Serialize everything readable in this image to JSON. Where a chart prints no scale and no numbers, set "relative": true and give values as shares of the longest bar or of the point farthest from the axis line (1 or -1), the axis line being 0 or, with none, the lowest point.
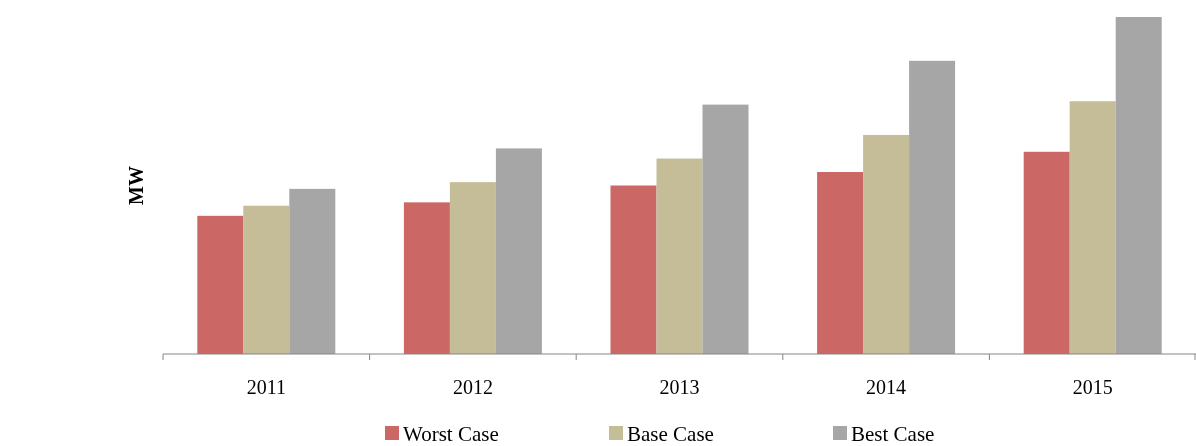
{
  "chart_data": {
    "type": "bar",
    "ylabel": "MW",
    "relative": true,
    "categories": [
      "2011",
      "2012",
      "2013",
      "2014",
      "2015"
    ],
    "series": [
      {
        "name": "Worst Case",
        "color": "#cb6764",
        "values": [
          0.41,
          0.45,
          0.5,
          0.54,
          0.6
        ]
      },
      {
        "name": "Base Case",
        "color": "#c4bd97",
        "values": [
          0.44,
          0.51,
          0.58,
          0.65,
          0.75
        ]
      },
      {
        "name": "Best Case",
        "color": "#a6a6a6",
        "values": [
          0.49,
          0.61,
          0.74,
          0.87,
          1
        ]
      }
    ],
    "legend": "bottom"
  }
}
